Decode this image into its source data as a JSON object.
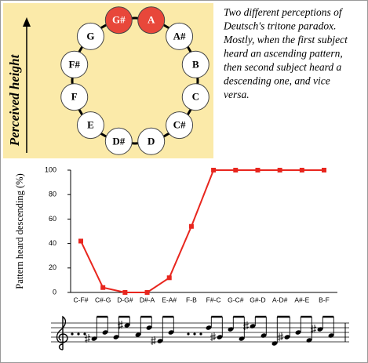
{
  "diagram": {
    "axis_label": "Perceived height",
    "nodes": [
      {
        "label": "A",
        "color": "#e8473a"
      },
      {
        "label": "A#",
        "color": "#ffffff"
      },
      {
        "label": "B",
        "color": "#ffffff"
      },
      {
        "label": "C",
        "color": "#ffffff"
      },
      {
        "label": "C#",
        "color": "#ffffff"
      },
      {
        "label": "D",
        "color": "#ffffff"
      },
      {
        "label": "D#",
        "color": "#ffffff"
      },
      {
        "label": "E",
        "color": "#ffffff"
      },
      {
        "label": "F",
        "color": "#ffffff"
      },
      {
        "label": "F#",
        "color": "#ffffff"
      },
      {
        "label": "G",
        "color": "#ffffff"
      },
      {
        "label": "G#",
        "color": "#e8473a"
      }
    ],
    "caption": [
      "Two different perceptions of",
      "Deutsch's tritone paradox.",
      "Mostly, when the first subject",
      "heard an ascending pattern,",
      "then second subject heard a",
      "descending one, and vice",
      "versa."
    ]
  },
  "chart_data": {
    "type": "line",
    "y_label": "Pattern heard descending (%)",
    "categories": [
      "C-F#",
      "C#-G",
      "D-G#",
      "D#-A",
      "E-A#",
      "F-B",
      "F#-C",
      "G-C#",
      "G#-D",
      "A-D#",
      "A#-E",
      "B-F"
    ],
    "series": [
      {
        "color": "#e8261e",
        "values": [
          42,
          4,
          0,
          0,
          12,
          54,
          100,
          100,
          100,
          100,
          100,
          100
        ]
      }
    ],
    "ylim": [
      0,
      100
    ],
    "yticks": [
      0,
      20,
      40,
      60,
      80,
      100
    ]
  }
}
